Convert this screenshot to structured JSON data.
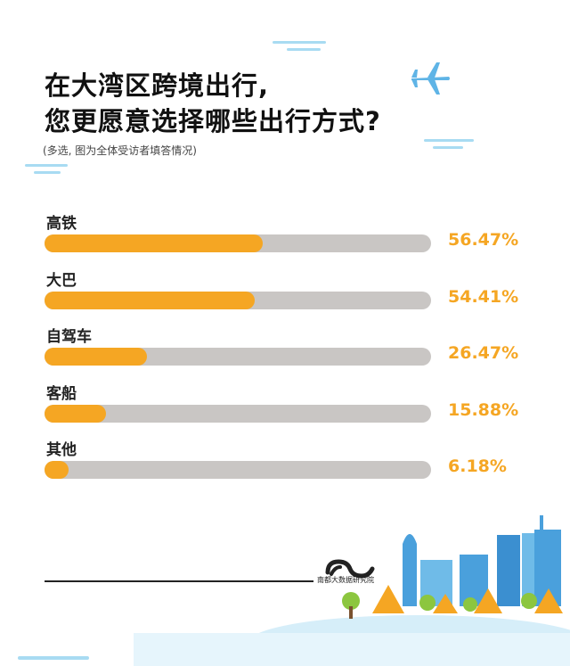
{
  "header": {
    "title_line1": "在大湾区跨境出行,",
    "title_line2": "您更愿意选择哪些出行方式?",
    "subtitle": "(多选, 图为全体受访者填答情况)"
  },
  "footer": {
    "brand": "南都大数据研究院"
  },
  "colors": {
    "bar_fill": "#f5a623",
    "bar_track": "#c9c6c4",
    "accent_sky": "#a8dbf2",
    "building_blue": "#4aa0dc"
  },
  "chart_data": {
    "type": "bar",
    "orientation": "horizontal",
    "categories": [
      "高铁",
      "大巴",
      "自驾车",
      "客船",
      "其他"
    ],
    "values": [
      56.47,
      54.41,
      26.47,
      15.88,
      6.18
    ],
    "value_labels": [
      "56.47%",
      "54.41%",
      "26.47%",
      "15.88%",
      "6.18%"
    ],
    "xlim": [
      0,
      100
    ],
    "grid": false,
    "legend": "none"
  }
}
